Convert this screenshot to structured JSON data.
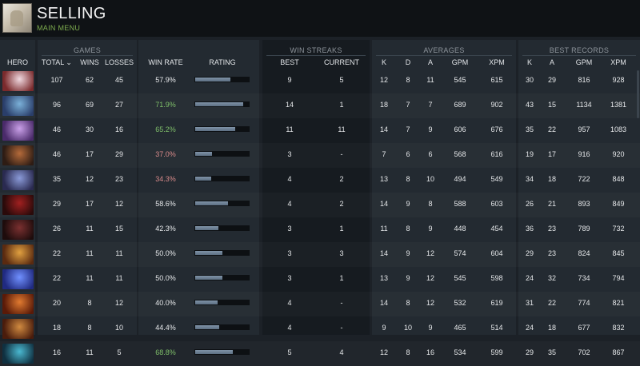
{
  "user": {
    "name": "SELLING",
    "main_menu": "MAIN MENU"
  },
  "groups": {
    "games": "GAMES",
    "win_streaks": "WIN STREAKS",
    "averages": "AVERAGES",
    "best_records": "BEST RECORDS"
  },
  "columns": {
    "hero": "HERO",
    "total": "TOTAL ⌄",
    "wins": "WINS",
    "losses": "LOSSES",
    "win_rate": "WIN RATE",
    "rating": "RATING",
    "best": "BEST",
    "current": "CURRENT",
    "avg_k": "K",
    "avg_d": "D",
    "avg_a": "A",
    "avg_gpm": "GPM",
    "avg_xpm": "XPM",
    "best_k": "K",
    "best_a": "A",
    "best_gpm": "GPM",
    "best_xpm": "XPM"
  },
  "colors": {
    "win_rate_good": "#7fbf6a",
    "win_rate_bad": "#d88a8a",
    "neutral": "#e6e8ea"
  },
  "rows": [
    {
      "hero_icon": "hero-portrait-1",
      "total": "107",
      "wins": "62",
      "losses": "45",
      "win_rate": "57.9%",
      "wr_class": "neutral",
      "rating": 0.66,
      "best": "9",
      "current": "5",
      "k": "12",
      "d": "8",
      "a": "11",
      "gpm": "545",
      "xpm": "615",
      "bk": "30",
      "ba": "29",
      "bgpm": "816",
      "bxpm": "928"
    },
    {
      "hero_icon": "hero-portrait-2",
      "total": "96",
      "wins": "69",
      "losses": "27",
      "win_rate": "71.9%",
      "wr_class": "good",
      "rating": 0.89,
      "best": "14",
      "current": "1",
      "k": "18",
      "d": "7",
      "a": "7",
      "gpm": "689",
      "xpm": "902",
      "bk": "43",
      "ba": "15",
      "bgpm": "1134",
      "bxpm": "1381"
    },
    {
      "hero_icon": "hero-portrait-3",
      "total": "46",
      "wins": "30",
      "losses": "16",
      "win_rate": "65.2%",
      "wr_class": "good",
      "rating": 0.74,
      "best": "11",
      "current": "11",
      "k": "14",
      "d": "7",
      "a": "9",
      "gpm": "606",
      "xpm": "676",
      "bk": "35",
      "ba": "22",
      "bgpm": "957",
      "bxpm": "1083"
    },
    {
      "hero_icon": "hero-portrait-4",
      "total": "46",
      "wins": "17",
      "losses": "29",
      "win_rate": "37.0%",
      "wr_class": "bad",
      "rating": 0.32,
      "best": "3",
      "current": "-",
      "k": "7",
      "d": "6",
      "a": "6",
      "gpm": "568",
      "xpm": "616",
      "bk": "19",
      "ba": "17",
      "bgpm": "916",
      "bxpm": "920"
    },
    {
      "hero_icon": "hero-portrait-5",
      "total": "35",
      "wins": "12",
      "losses": "23",
      "win_rate": "34.3%",
      "wr_class": "bad",
      "rating": 0.3,
      "best": "4",
      "current": "2",
      "k": "13",
      "d": "8",
      "a": "10",
      "gpm": "494",
      "xpm": "549",
      "bk": "34",
      "ba": "18",
      "bgpm": "722",
      "bxpm": "848"
    },
    {
      "hero_icon": "hero-portrait-6",
      "total": "29",
      "wins": "17",
      "losses": "12",
      "win_rate": "58.6%",
      "wr_class": "neutral",
      "rating": 0.61,
      "best": "4",
      "current": "2",
      "k": "14",
      "d": "9",
      "a": "8",
      "gpm": "588",
      "xpm": "603",
      "bk": "26",
      "ba": "21",
      "bgpm": "893",
      "bxpm": "849"
    },
    {
      "hero_icon": "hero-portrait-7",
      "total": "26",
      "wins": "11",
      "losses": "15",
      "win_rate": "42.3%",
      "wr_class": "neutral",
      "rating": 0.43,
      "best": "3",
      "current": "1",
      "k": "11",
      "d": "8",
      "a": "9",
      "gpm": "448",
      "xpm": "454",
      "bk": "36",
      "ba": "23",
      "bgpm": "789",
      "bxpm": "732"
    },
    {
      "hero_icon": "hero-portrait-8",
      "total": "22",
      "wins": "11",
      "losses": "11",
      "win_rate": "50.0%",
      "wr_class": "neutral",
      "rating": 0.5,
      "best": "3",
      "current": "3",
      "k": "14",
      "d": "9",
      "a": "12",
      "gpm": "574",
      "xpm": "604",
      "bk": "29",
      "ba": "23",
      "bgpm": "824",
      "bxpm": "845"
    },
    {
      "hero_icon": "hero-portrait-9",
      "total": "22",
      "wins": "11",
      "losses": "11",
      "win_rate": "50.0%",
      "wr_class": "neutral",
      "rating": 0.5,
      "best": "3",
      "current": "1",
      "k": "13",
      "d": "9",
      "a": "12",
      "gpm": "545",
      "xpm": "598",
      "bk": "24",
      "ba": "32",
      "bgpm": "734",
      "bxpm": "794"
    },
    {
      "hero_icon": "hero-portrait-10",
      "total": "20",
      "wins": "8",
      "losses": "12",
      "win_rate": "40.0%",
      "wr_class": "neutral",
      "rating": 0.42,
      "best": "4",
      "current": "-",
      "k": "14",
      "d": "8",
      "a": "12",
      "gpm": "532",
      "xpm": "619",
      "bk": "31",
      "ba": "22",
      "bgpm": "774",
      "bxpm": "821"
    },
    {
      "hero_icon": "hero-portrait-11",
      "total": "18",
      "wins": "8",
      "losses": "10",
      "win_rate": "44.4%",
      "wr_class": "neutral",
      "rating": 0.45,
      "best": "4",
      "current": "-",
      "k": "9",
      "d": "10",
      "a": "9",
      "gpm": "465",
      "xpm": "514",
      "bk": "24",
      "ba": "18",
      "bgpm": "677",
      "bxpm": "832"
    },
    {
      "hero_icon": "hero-portrait-12",
      "total": "16",
      "wins": "11",
      "losses": "5",
      "win_rate": "68.8%",
      "wr_class": "good",
      "rating": 0.7,
      "best": "5",
      "current": "4",
      "k": "12",
      "d": "8",
      "a": "16",
      "gpm": "534",
      "xpm": "599",
      "bk": "29",
      "ba": "35",
      "bgpm": "702",
      "bxpm": "867"
    }
  ]
}
